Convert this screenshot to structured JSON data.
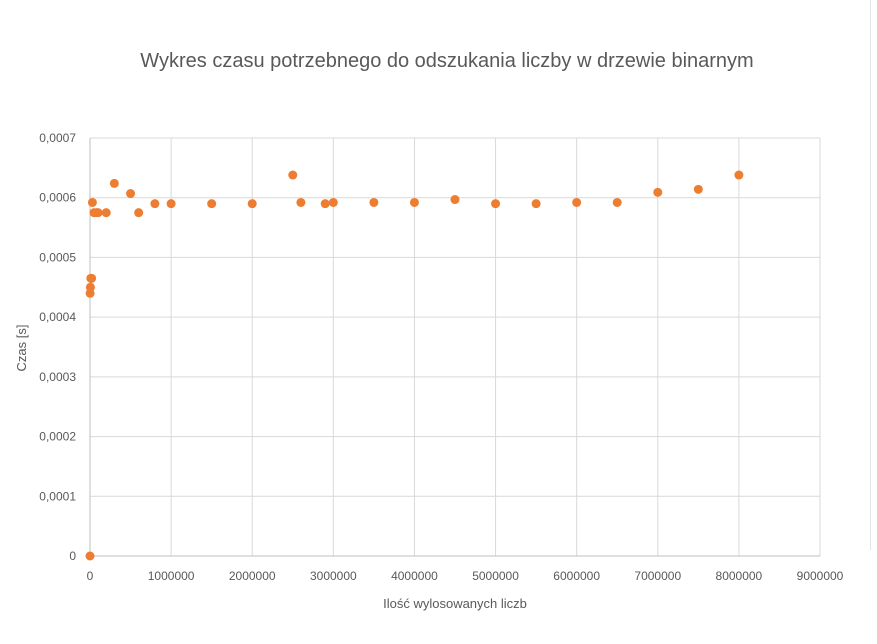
{
  "chart_data": {
    "type": "scatter",
    "title": "Wykres czasu potrzebnego do odszukania liczby w drzewie binarnym",
    "xlabel": "Ilość wylosowanych liczb",
    "ylabel": "Czas [s]",
    "xlim": [
      0,
      9000000
    ],
    "ylim": [
      0,
      0.0007
    ],
    "x_ticks": [
      0,
      1000000,
      2000000,
      3000000,
      4000000,
      5000000,
      6000000,
      7000000,
      8000000,
      9000000
    ],
    "x_tick_labels": [
      "0",
      "1000000",
      "2000000",
      "3000000",
      "4000000",
      "5000000",
      "6000000",
      "7000000",
      "8000000",
      "9000000"
    ],
    "y_ticks": [
      0,
      0.0001,
      0.0002,
      0.0003,
      0.0004,
      0.0005,
      0.0006,
      0.0007
    ],
    "y_tick_labels": [
      "0",
      "0,0001",
      "0,0002",
      "0,0003",
      "0,0004",
      "0,0005",
      "0,0006",
      "0,0007"
    ],
    "grid": true,
    "legend": "none",
    "marker_color": "#ED7D31",
    "points": [
      {
        "x": 0,
        "y": 0
      },
      {
        "x": 1000,
        "y": 0.00044
      },
      {
        "x": 5000,
        "y": 0.00045
      },
      {
        "x": 10000,
        "y": 0.000465
      },
      {
        "x": 20000,
        "y": 0.000465
      },
      {
        "x": 30000,
        "y": 0.000592
      },
      {
        "x": 50000,
        "y": 0.000575
      },
      {
        "x": 80000,
        "y": 0.000575
      },
      {
        "x": 100000,
        "y": 0.000575
      },
      {
        "x": 200000,
        "y": 0.000575
      },
      {
        "x": 300000,
        "y": 0.000624
      },
      {
        "x": 500000,
        "y": 0.000607
      },
      {
        "x": 600000,
        "y": 0.000575
      },
      {
        "x": 800000,
        "y": 0.00059
      },
      {
        "x": 1000000,
        "y": 0.00059
      },
      {
        "x": 1500000,
        "y": 0.00059
      },
      {
        "x": 2000000,
        "y": 0.00059
      },
      {
        "x": 2500000,
        "y": 0.000638
      },
      {
        "x": 2600000,
        "y": 0.000592
      },
      {
        "x": 2900000,
        "y": 0.00059
      },
      {
        "x": 3000000,
        "y": 0.000592
      },
      {
        "x": 3500000,
        "y": 0.000592
      },
      {
        "x": 4000000,
        "y": 0.000592
      },
      {
        "x": 4500000,
        "y": 0.000597
      },
      {
        "x": 5000000,
        "y": 0.00059
      },
      {
        "x": 5500000,
        "y": 0.00059
      },
      {
        "x": 6000000,
        "y": 0.000592
      },
      {
        "x": 6500000,
        "y": 0.000592
      },
      {
        "x": 7000000,
        "y": 0.000609
      },
      {
        "x": 7500000,
        "y": 0.000614
      },
      {
        "x": 8000000,
        "y": 0.000638
      }
    ]
  }
}
